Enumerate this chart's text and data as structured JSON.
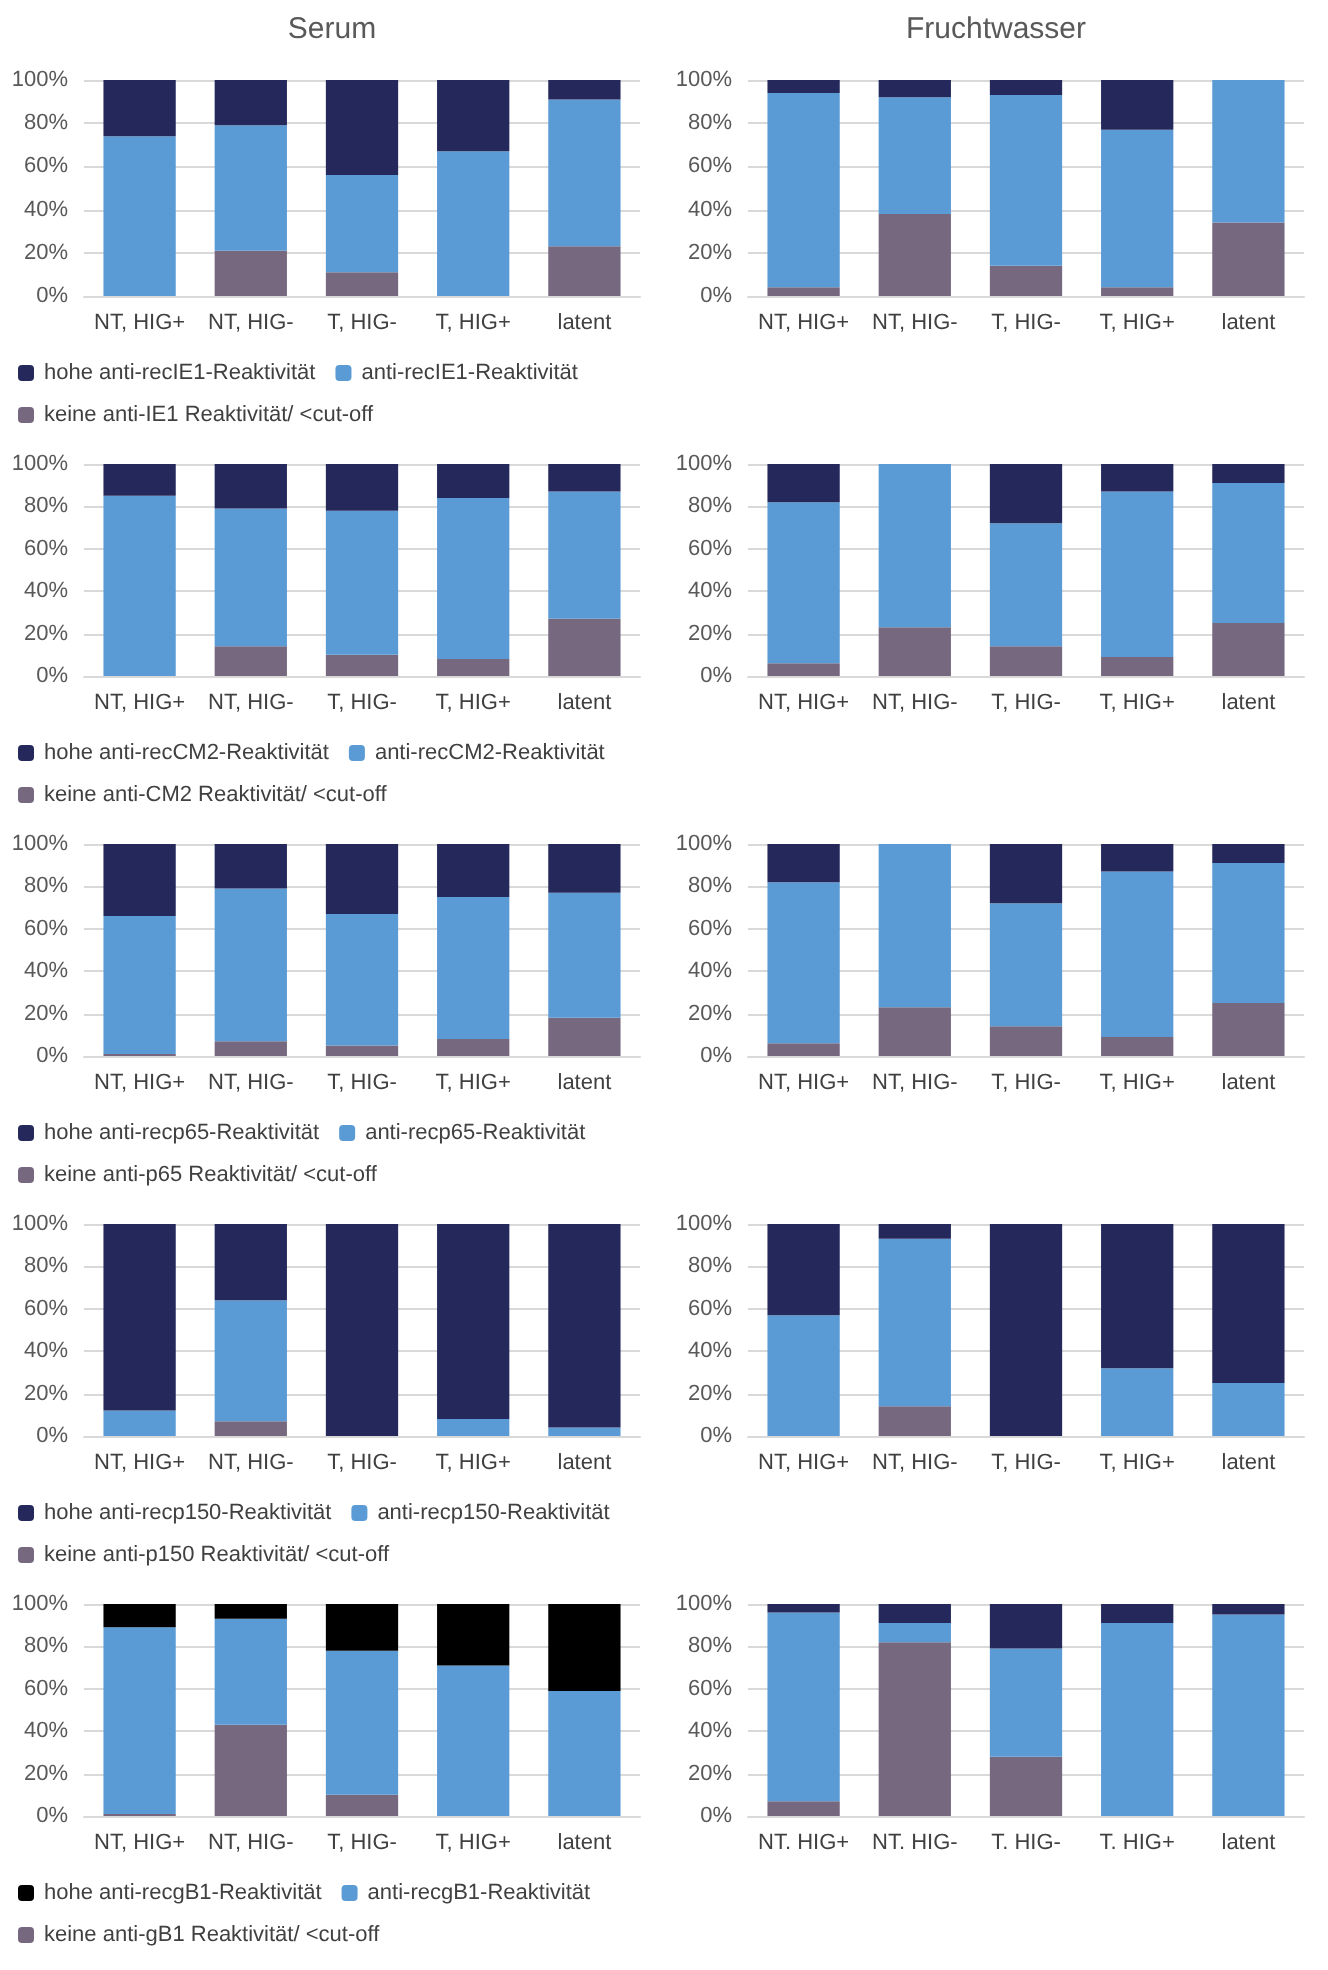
{
  "chart_data": [
    {
      "type": "bar",
      "title": "Serum",
      "stacked": true,
      "grid": "y",
      "legend": "bottom",
      "categories": [
        "NT, HIG+",
        "NT, HIG-",
        "T, HIG-",
        "T, HIG+",
        "latent"
      ],
      "ylim": [
        0,
        100
      ],
      "yticks": [
        {
          "value": 0,
          "label": "0%"
        },
        {
          "value": 20,
          "label": "20%"
        },
        {
          "value": 40,
          "label": "40%"
        },
        {
          "value": 60,
          "label": "60%"
        },
        {
          "value": 80,
          "label": "80%"
        },
        {
          "value": 100,
          "label": "100%"
        }
      ],
      "series": [
        {
          "name": "keine anti-IE1 Reaktivität/ <cut-off",
          "color": "#76687e",
          "values": [
            0,
            21,
            11,
            0,
            23
          ]
        },
        {
          "name": "anti-recIE1-Reaktivität",
          "color": "#5b9bd5",
          "values": [
            74,
            58,
            45,
            67,
            68
          ]
        },
        {
          "name": "hohe anti-recIE1-Reaktivität",
          "color": "#24285a",
          "values": [
            26,
            21,
            44,
            33,
            9
          ]
        }
      ]
    },
    {
      "type": "bar",
      "title": "Fruchtwasser",
      "stacked": true,
      "grid": "y",
      "categories": [
        "NT, HIG+",
        "NT, HIG-",
        "T, HIG-",
        "T, HIG+",
        "latent"
      ],
      "ylim": [
        0,
        100
      ],
      "yticks": [
        {
          "value": 0,
          "label": "0%"
        },
        {
          "value": 20,
          "label": "20%"
        },
        {
          "value": 40,
          "label": "40%"
        },
        {
          "value": 60,
          "label": "60%"
        },
        {
          "value": 80,
          "label": "80%"
        },
        {
          "value": 100,
          "label": "100%"
        }
      ],
      "series": [
        {
          "color": "#76687e",
          "values": [
            4,
            38,
            14,
            4,
            34
          ]
        },
        {
          "color": "#5b9bd5",
          "values": [
            90,
            54,
            79,
            73,
            66
          ]
        },
        {
          "color": "#24285a",
          "values": [
            6,
            8,
            7,
            23,
            0
          ]
        }
      ]
    },
    {
      "type": "bar",
      "stacked": true,
      "grid": "y",
      "legend": "bottom",
      "categories": [
        "NT, HIG+",
        "NT, HIG-",
        "T, HIG-",
        "T, HIG+",
        "latent"
      ],
      "ylim": [
        0,
        100
      ],
      "yticks": [
        {
          "value": 0,
          "label": "0%"
        },
        {
          "value": 20,
          "label": "20%"
        },
        {
          "value": 40,
          "label": "40%"
        },
        {
          "value": 60,
          "label": "60%"
        },
        {
          "value": 80,
          "label": "80%"
        },
        {
          "value": 100,
          "label": "100%"
        }
      ],
      "series": [
        {
          "name": "keine anti-CM2 Reaktivität/ <cut-off",
          "color": "#76687e",
          "values": [
            0,
            14,
            10,
            8,
            27
          ]
        },
        {
          "name": "anti-recCM2-Reaktivität",
          "color": "#5b9bd5",
          "values": [
            85,
            65,
            68,
            76,
            60
          ]
        },
        {
          "name": "hohe anti-recCM2-Reaktivität",
          "color": "#24285a",
          "values": [
            15,
            21,
            22,
            16,
            13
          ]
        }
      ]
    },
    {
      "type": "bar",
      "stacked": true,
      "grid": "y",
      "categories": [
        "NT, HIG+",
        "NT, HIG-",
        "T, HIG-",
        "T, HIG+",
        "latent"
      ],
      "ylim": [
        0,
        100
      ],
      "yticks": [
        {
          "value": 0,
          "label": "0%"
        },
        {
          "value": 20,
          "label": "20%"
        },
        {
          "value": 40,
          "label": "40%"
        },
        {
          "value": 60,
          "label": "60%"
        },
        {
          "value": 80,
          "label": "80%"
        },
        {
          "value": 100,
          "label": "100%"
        }
      ],
      "series": [
        {
          "color": "#76687e",
          "values": [
            6,
            23,
            14,
            9,
            25
          ]
        },
        {
          "color": "#5b9bd5",
          "values": [
            76,
            77,
            58,
            78,
            66
          ]
        },
        {
          "color": "#24285a",
          "values": [
            18,
            0,
            28,
            13,
            9
          ]
        }
      ]
    },
    {
      "type": "bar",
      "stacked": true,
      "grid": "y",
      "legend": "bottom",
      "categories": [
        "NT, HIG+",
        "NT, HIG-",
        "T, HIG-",
        "T, HIG+",
        "latent"
      ],
      "ylim": [
        0,
        100
      ],
      "yticks": [
        {
          "value": 0,
          "label": "0%"
        },
        {
          "value": 20,
          "label": "20%"
        },
        {
          "value": 40,
          "label": "40%"
        },
        {
          "value": 60,
          "label": "60%"
        },
        {
          "value": 80,
          "label": "80%"
        },
        {
          "value": 100,
          "label": "100%"
        }
      ],
      "series": [
        {
          "name": "keine anti-p65 Reaktivität/ <cut-off",
          "color": "#76687e",
          "values": [
            1,
            7,
            5,
            8,
            18
          ]
        },
        {
          "name": "anti-recp65-Reaktivität",
          "color": "#5b9bd5",
          "values": [
            65,
            72,
            62,
            67,
            59
          ]
        },
        {
          "name": "hohe anti-recp65-Reaktivität",
          "color": "#24285a",
          "values": [
            34,
            21,
            33,
            25,
            23
          ]
        }
      ]
    },
    {
      "type": "bar",
      "stacked": true,
      "grid": "y",
      "categories": [
        "NT, HIG+",
        "NT, HIG-",
        "T, HIG-",
        "T, HIG+",
        "latent"
      ],
      "ylim": [
        0,
        100
      ],
      "yticks": [
        {
          "value": 0,
          "label": "0%"
        },
        {
          "value": 20,
          "label": "20%"
        },
        {
          "value": 40,
          "label": "40%"
        },
        {
          "value": 60,
          "label": "60%"
        },
        {
          "value": 80,
          "label": "80%"
        },
        {
          "value": 100,
          "label": "100%"
        }
      ],
      "series": [
        {
          "color": "#76687e",
          "values": [
            6,
            23,
            14,
            9,
            25
          ]
        },
        {
          "color": "#5b9bd5",
          "values": [
            76,
            77,
            58,
            78,
            66
          ]
        },
        {
          "color": "#24285a",
          "values": [
            18,
            0,
            28,
            13,
            9
          ]
        }
      ]
    },
    {
      "type": "bar",
      "stacked": true,
      "grid": "y",
      "legend": "bottom",
      "categories": [
        "NT, HIG+",
        "NT, HIG-",
        "T, HIG-",
        "T, HIG+",
        "latent"
      ],
      "ylim": [
        0,
        100
      ],
      "yticks": [
        {
          "value": 0,
          "label": "0%"
        },
        {
          "value": 20,
          "label": "20%"
        },
        {
          "value": 40,
          "label": "40%"
        },
        {
          "value": 60,
          "label": "60%"
        },
        {
          "value": 80,
          "label": "80%"
        },
        {
          "value": 100,
          "label": "100%"
        }
      ],
      "series": [
        {
          "name": "keine anti-p150 Reaktivität/ <cut-off",
          "color": "#76687e",
          "values": [
            0,
            7,
            0,
            0,
            0
          ]
        },
        {
          "name": "anti-recp150-Reaktivität",
          "color": "#5b9bd5",
          "values": [
            12,
            57,
            0,
            8,
            4
          ]
        },
        {
          "name": "hohe anti-recp150-Reaktivität",
          "color": "#24285a",
          "values": [
            88,
            36,
            100,
            92,
            96
          ]
        }
      ]
    },
    {
      "type": "bar",
      "stacked": true,
      "grid": "y",
      "categories": [
        "NT, HIG+",
        "NT, HIG-",
        "T, HIG-",
        "T, HIG+",
        "latent"
      ],
      "ylim": [
        0,
        100
      ],
      "yticks": [
        {
          "value": 0,
          "label": "0%"
        },
        {
          "value": 20,
          "label": "20%"
        },
        {
          "value": 40,
          "label": "40%"
        },
        {
          "value": 60,
          "label": "60%"
        },
        {
          "value": 80,
          "label": "80%"
        },
        {
          "value": 100,
          "label": "100%"
        }
      ],
      "series": [
        {
          "color": "#76687e",
          "values": [
            0,
            14,
            0,
            0,
            0
          ]
        },
        {
          "color": "#5b9bd5",
          "values": [
            57,
            79,
            0,
            32,
            25
          ]
        },
        {
          "color": "#24285a",
          "values": [
            43,
            7,
            100,
            68,
            75
          ]
        }
      ]
    },
    {
      "type": "bar",
      "stacked": true,
      "grid": "y",
      "legend": "bottom",
      "categories": [
        "NT, HIG+",
        "NT, HIG-",
        "T, HIG-",
        "T, HIG+",
        "latent"
      ],
      "ylim": [
        0,
        100
      ],
      "yticks": [
        {
          "value": 0,
          "label": "0%"
        },
        {
          "value": 20,
          "label": "20%"
        },
        {
          "value": 40,
          "label": "40%"
        },
        {
          "value": 60,
          "label": "60%"
        },
        {
          "value": 80,
          "label": "80%"
        },
        {
          "value": 100,
          "label": "100%"
        }
      ],
      "series": [
        {
          "name": "keine anti-gB1 Reaktivität/ <cut-off",
          "color": "#76687e",
          "values": [
            1,
            43,
            10,
            0,
            0
          ]
        },
        {
          "name": "anti-recgB1-Reaktivität",
          "color": "#5b9bd5",
          "values": [
            88,
            50,
            68,
            71,
            59
          ]
        },
        {
          "name": "hohe anti-recgB1-Reaktivität",
          "color": "#000000",
          "values": [
            11,
            7,
            22,
            29,
            41
          ]
        }
      ]
    },
    {
      "type": "bar",
      "stacked": true,
      "grid": "y",
      "categories": [
        "NT. HIG+",
        "NT. HIG-",
        "T. HIG-",
        "T. HIG+",
        "latent"
      ],
      "ylim": [
        0,
        100
      ],
      "yticks": [
        {
          "value": 0,
          "label": "0%"
        },
        {
          "value": 20,
          "label": "20%"
        },
        {
          "value": 40,
          "label": "40%"
        },
        {
          "value": 60,
          "label": "60%"
        },
        {
          "value": 80,
          "label": "80%"
        },
        {
          "value": 100,
          "label": "100%"
        }
      ],
      "series": [
        {
          "color": "#76687e",
          "values": [
            7,
            82,
            28,
            0,
            0
          ]
        },
        {
          "color": "#5b9bd5",
          "values": [
            89,
            9,
            51,
            91,
            95
          ]
        },
        {
          "color": "#24285a",
          "values": [
            4,
            9,
            21,
            9,
            5
          ]
        }
      ]
    }
  ]
}
